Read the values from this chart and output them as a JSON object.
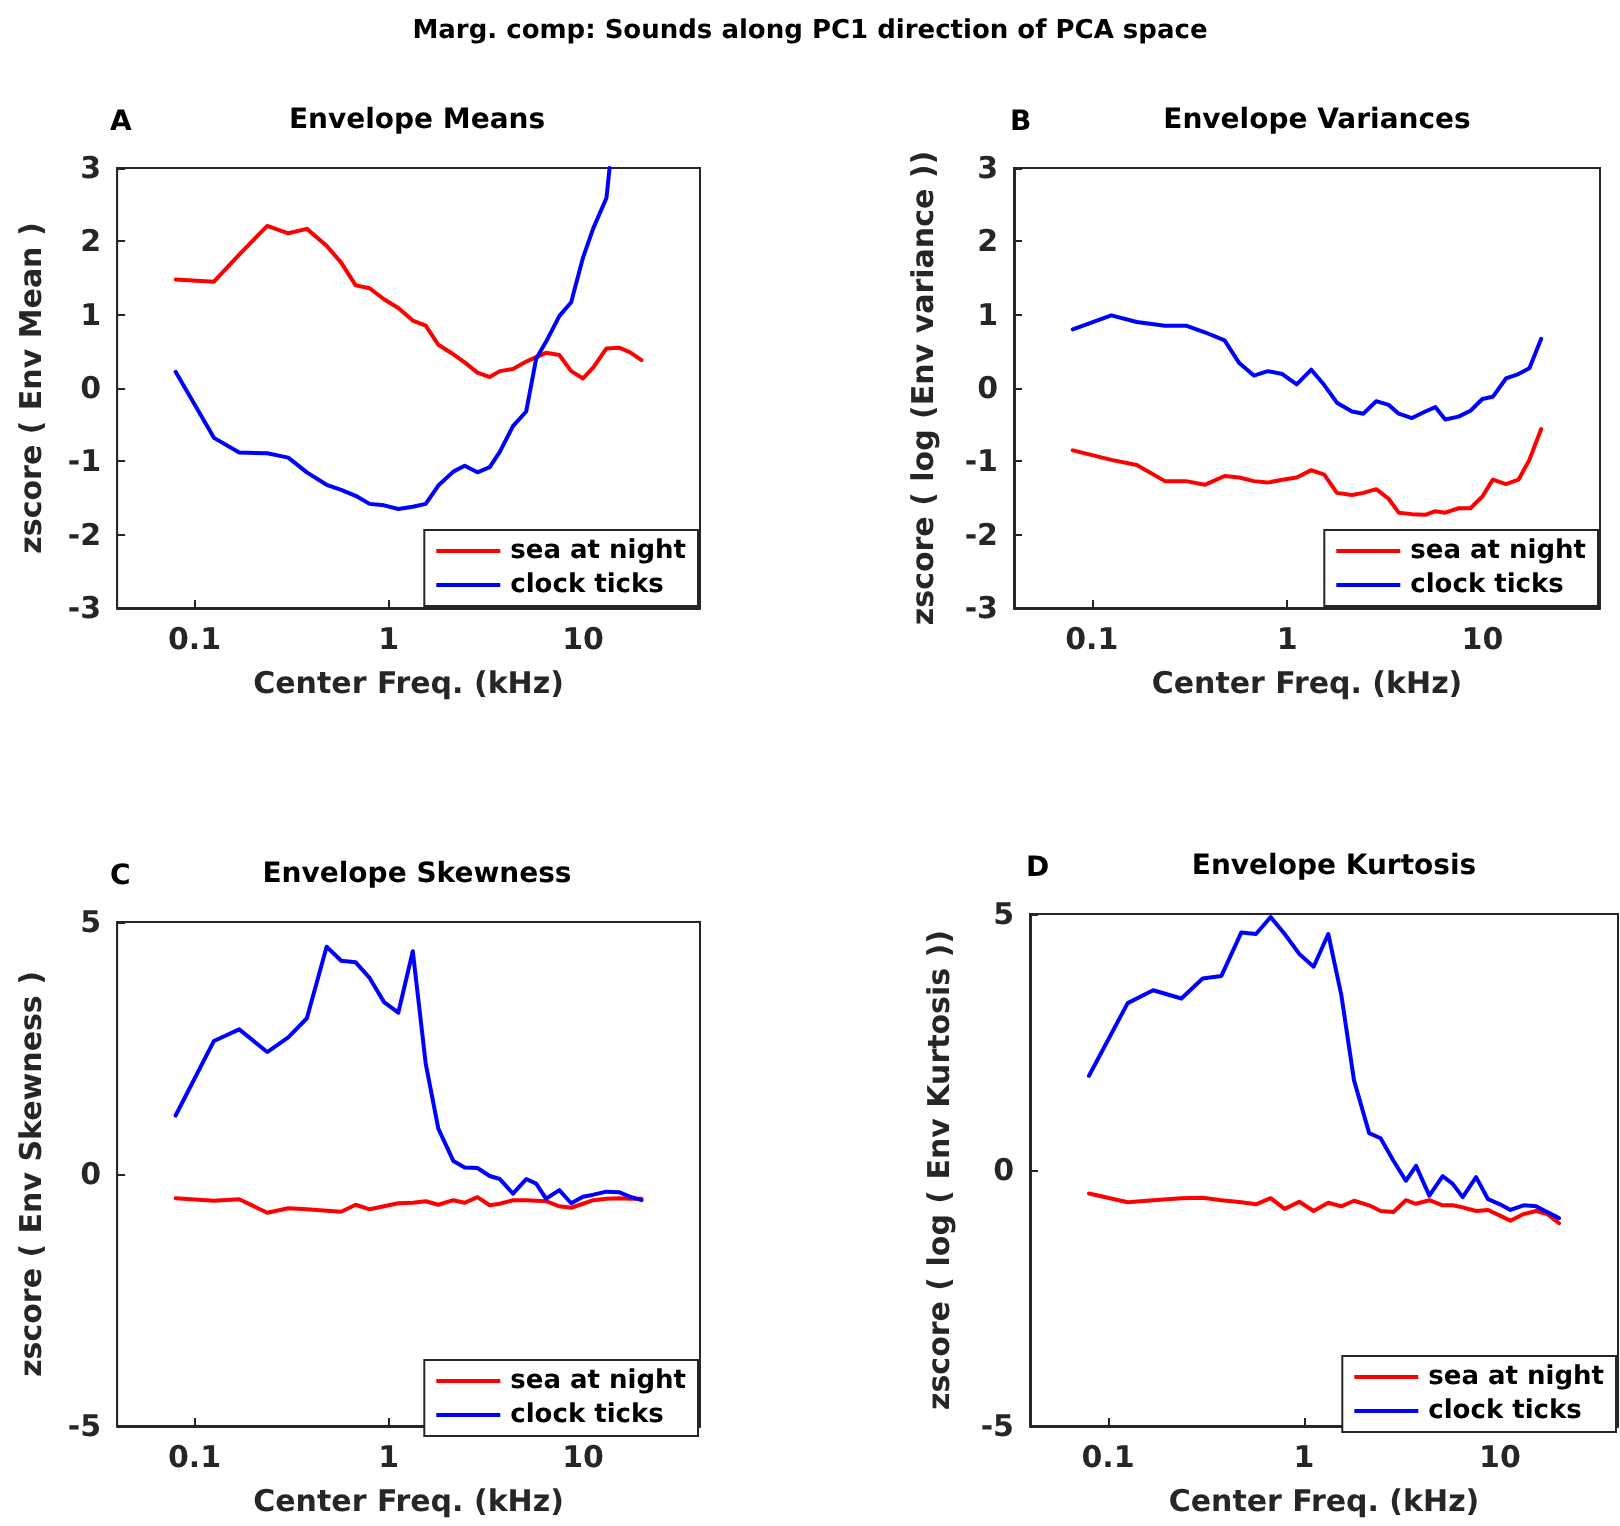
{
  "chart_data": [
    {
      "type": "line",
      "title": "Envelope Means",
      "xlabel": "Center Freq. (kHz)",
      "ylabel": "zscore ( Env Mean )",
      "annotations": [
        "A",
        "Marg. comp: Sounds along PC1 direction of PCA space"
      ],
      "x": [
        0.08,
        0.126,
        0.17,
        0.237,
        0.304,
        0.379,
        0.479,
        0.569,
        0.676,
        0.797,
        0.946,
        1.12,
        1.33,
        1.55,
        1.8,
        2.15,
        2.46,
        2.86,
        3.31,
        3.73,
        4.36,
        5.1,
        5.74,
        6.45,
        7.55,
        8.69,
        10,
        11.3,
        13.2,
        15.3,
        17.4,
        20
      ],
      "series": [
        {
          "name": "sea at night",
          "color": "#ff0000",
          "values": [
            1.48,
            1.45,
            1.82,
            2.21,
            2.11,
            2.17,
            1.94,
            1.71,
            1.4,
            1.36,
            1.21,
            1.09,
            0.92,
            0.85,
            0.59,
            0.46,
            0.35,
            0.21,
            0.15,
            0.23,
            0.26,
            0.36,
            0.42,
            0.48,
            0.45,
            0.23,
            0.13,
            0.28,
            0.54,
            0.55,
            0.49,
            0.38
          ]
        },
        {
          "name": "clock ticks",
          "color": "#0000ff",
          "x": [
            0.08,
            0.126,
            0.17,
            0.237,
            0.304,
            0.379,
            0.479,
            0.569,
            0.676,
            0.797,
            0.946,
            1.12,
            1.33,
            1.55,
            1.8,
            2.15,
            2.46,
            2.86,
            3.31,
            3.73,
            4.36,
            5.1,
            5.74,
            6.45,
            7.55,
            8.69,
            10,
            11.3,
            13.2,
            13.7
          ],
          "values": [
            0.22,
            -0.68,
            -0.88,
            -0.89,
            -0.95,
            -1.15,
            -1.32,
            -1.39,
            -1.47,
            -1.58,
            -1.6,
            -1.65,
            -1.62,
            -1.58,
            -1.33,
            -1.14,
            -1.06,
            -1.15,
            -1.08,
            -0.87,
            -0.52,
            -0.32,
            0.4,
            0.63,
            0.98,
            1.17,
            1.78,
            2.18,
            2.59,
            3
          ]
        }
      ],
      "xlim": [
        0.04,
        40
      ],
      "ylim": [
        -3,
        3
      ],
      "xticks": [
        0.1,
        1,
        10
      ],
      "yticks": [
        -3,
        -2,
        -1,
        0,
        1,
        2,
        3
      ],
      "log": "x",
      "legend": "bottom right",
      "marker": "none"
    },
    {
      "type": "line",
      "title": "Envelope Variances",
      "xlabel": "Center Freq. (kHz)",
      "ylabel": "zscore ( log (Env variance ))",
      "annotations": [
        "B"
      ],
      "x": [
        0.08,
        0.126,
        0.17,
        0.237,
        0.304,
        0.379,
        0.479,
        0.569,
        0.676,
        0.797,
        0.946,
        1.12,
        1.33,
        1.55,
        1.8,
        2.15,
        2.46,
        2.86,
        3.31,
        3.73,
        4.36,
        5.1,
        5.74,
        6.45,
        7.55,
        8.69,
        10,
        11.3,
        13.2,
        15.3,
        17.4,
        20
      ],
      "series": [
        {
          "name": "sea at night",
          "color": "#ff0000",
          "values": [
            -0.85,
            -0.98,
            -1.05,
            -1.27,
            -1.27,
            -1.32,
            -1.2,
            -1.22,
            -1.27,
            -1.29,
            -1.25,
            -1.22,
            -1.12,
            -1.18,
            -1.43,
            -1.46,
            -1.43,
            -1.38,
            -1.51,
            -1.7,
            -1.72,
            -1.73,
            -1.68,
            -1.7,
            -1.64,
            -1.64,
            -1.48,
            -1.25,
            -1.31,
            -1.25,
            -0.98,
            -0.56
          ]
        },
        {
          "name": "clock ticks",
          "color": "#0000ff",
          "values": [
            0.8,
            0.99,
            0.9,
            0.85,
            0.85,
            0.76,
            0.65,
            0.34,
            0.17,
            0.23,
            0.19,
            0.05,
            0.25,
            0.04,
            -0.2,
            -0.32,
            -0.35,
            -0.18,
            -0.23,
            -0.35,
            -0.41,
            -0.32,
            -0.26,
            -0.43,
            -0.39,
            -0.31,
            -0.15,
            -0.12,
            0.13,
            0.19,
            0.27,
            0.67
          ]
        }
      ],
      "xlim": [
        0.04,
        40
      ],
      "ylim": [
        -3,
        3
      ],
      "xticks": [
        0.1,
        1,
        10
      ],
      "yticks": [
        -3,
        -2,
        -1,
        0,
        1,
        2,
        3
      ],
      "log": "x",
      "legend": "bottom right",
      "marker": "none"
    },
    {
      "type": "line",
      "title": "Envelope Skewness",
      "xlabel": "Center Freq. (kHz)",
      "ylabel": "zscore ( Env Skewness )",
      "annotations": [
        "C"
      ],
      "x": [
        0.08,
        0.126,
        0.17,
        0.237,
        0.304,
        0.379,
        0.479,
        0.569,
        0.676,
        0.797,
        0.946,
        1.12,
        1.33,
        1.55,
        1.8,
        2.15,
        2.46,
        2.86,
        3.31,
        3.73,
        4.36,
        5.1,
        5.74,
        6.45,
        7.55,
        8.69,
        10,
        11.3,
        13.2,
        15.3,
        17.4,
        20
      ],
      "series": [
        {
          "name": "sea at night",
          "color": "#ff0000",
          "values": [
            -0.48,
            -0.53,
            -0.5,
            -0.77,
            -0.68,
            -0.7,
            -0.73,
            -0.75,
            -0.61,
            -0.7,
            -0.64,
            -0.58,
            -0.57,
            -0.54,
            -0.61,
            -0.52,
            -0.57,
            -0.46,
            -0.62,
            -0.59,
            -0.52,
            -0.52,
            -0.53,
            -0.54,
            -0.64,
            -0.67,
            -0.59,
            -0.52,
            -0.49,
            -0.48,
            -0.49,
            -0.49
          ]
        },
        {
          "name": "clock ticks",
          "color": "#0000ff",
          "values": [
            1.16,
            2.64,
            2.87,
            2.42,
            2.71,
            3.09,
            4.51,
            4.23,
            4.2,
            3.89,
            3.41,
            3.2,
            4.42,
            2.19,
            0.9,
            0.26,
            0.13,
            0.12,
            -0.04,
            -0.1,
            -0.39,
            -0.1,
            -0.19,
            -0.49,
            -0.32,
            -0.58,
            -0.45,
            -0.41,
            -0.35,
            -0.36,
            -0.45,
            -0.52
          ]
        }
      ],
      "xlim": [
        0.04,
        40
      ],
      "ylim": [
        -5,
        5
      ],
      "xticks": [
        0.1,
        1,
        10
      ],
      "yticks": [
        -5,
        0,
        5
      ],
      "log": "x",
      "legend": "bottom right",
      "marker": "none"
    },
    {
      "type": "line",
      "title": "Envelope Kurtosis",
      "xlabel": "Center Freq. (kHz)",
      "ylabel": "zscore ( log ( Env Kurtosis ))",
      "annotations": [
        "D"
      ],
      "x": [
        0.08,
        0.126,
        0.17,
        0.237,
        0.304,
        0.379,
        0.479,
        0.569,
        0.676,
        0.797,
        0.946,
        1.12,
        1.33,
        1.55,
        1.8,
        2.15,
        2.46,
        2.86,
        3.31,
        3.73,
        4.36,
        5.1,
        5.74,
        6.45,
        7.55,
        8.69,
        10,
        11.3,
        13.2,
        15.3,
        17.4,
        20
      ],
      "series": [
        {
          "name": "sea at night",
          "color": "#ff0000",
          "values": [
            -0.46,
            -0.63,
            -0.59,
            -0.55,
            -0.54,
            -0.59,
            -0.63,
            -0.67,
            -0.55,
            -0.76,
            -0.62,
            -0.8,
            -0.64,
            -0.71,
            -0.6,
            -0.69,
            -0.8,
            -0.82,
            -0.59,
            -0.66,
            -0.59,
            -0.69,
            -0.69,
            -0.73,
            -0.8,
            -0.78,
            -0.89,
            -0.99,
            -0.86,
            -0.8,
            -0.86,
            -1.04
          ]
        },
        {
          "name": "clock ticks",
          "color": "#0000ff",
          "values": [
            1.84,
            3.26,
            3.51,
            3.35,
            3.74,
            3.79,
            4.64,
            4.61,
            4.94,
            4.61,
            4.22,
            3.97,
            4.61,
            3.42,
            1.75,
            0.72,
            0.62,
            0.18,
            -0.21,
            0.08,
            -0.5,
            -0.12,
            -0.27,
            -0.53,
            -0.14,
            -0.57,
            -0.67,
            -0.78,
            -0.69,
            -0.71,
            -0.82,
            -0.94
          ]
        }
      ],
      "xlim": [
        0.04,
        40
      ],
      "ylim": [
        -5,
        5
      ],
      "xticks": [
        0.1,
        1,
        10
      ],
      "yticks": [
        -5,
        0,
        5
      ],
      "log": "x",
      "legend": "bottom right",
      "marker": "none"
    }
  ]
}
